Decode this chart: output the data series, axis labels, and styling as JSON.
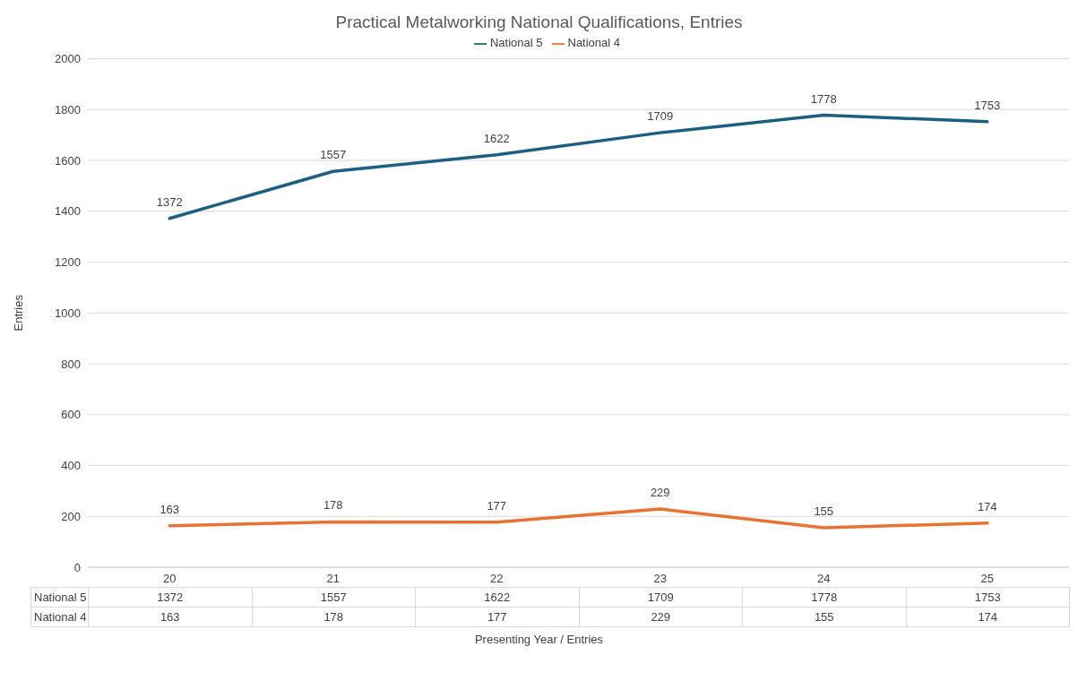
{
  "chart_data": {
    "type": "line",
    "title": "Practical Metalworking National Qualifications, Entries",
    "xlabel": "Presenting Year / Entries",
    "ylabel": "Entries",
    "categories": [
      "20",
      "21",
      "22",
      "23",
      "24",
      "25"
    ],
    "series": [
      {
        "name": "National 5",
        "color": "#1b5f82",
        "values": [
          1372,
          1557,
          1622,
          1709,
          1778,
          1753
        ]
      },
      {
        "name": "National 4",
        "color": "#e97132",
        "values": [
          163,
          178,
          177,
          229,
          155,
          174
        ]
      }
    ],
    "annotations": [
      {
        "text": "1372",
        "x": "20",
        "y": 1372
      },
      {
        "text": "1557",
        "x": "21",
        "y": 1557
      },
      {
        "text": "1622",
        "x": "22",
        "y": 1622
      },
      {
        "text": "1709",
        "x": "23",
        "y": 1709
      },
      {
        "text": "1778",
        "x": "24",
        "y": 1778
      },
      {
        "text": "1753",
        "x": "25",
        "y": 1753
      },
      {
        "text": "163",
        "x": "20",
        "y": 163
      },
      {
        "text": "178",
        "x": "21",
        "y": 178
      },
      {
        "text": "177",
        "x": "22",
        "y": 177
      },
      {
        "text": "229",
        "x": "23",
        "y": 229
      },
      {
        "text": "155",
        "x": "24",
        "y": 155
      },
      {
        "text": "174",
        "x": "25",
        "y": 174
      }
    ],
    "ylim": [
      0,
      2000
    ],
    "yticks": [
      0,
      200,
      400,
      600,
      800,
      1000,
      1200,
      1400,
      1600,
      1800,
      2000
    ],
    "grid": "y",
    "legend": "top",
    "marker": "none",
    "line_style": "solid",
    "data_labels": true
  }
}
